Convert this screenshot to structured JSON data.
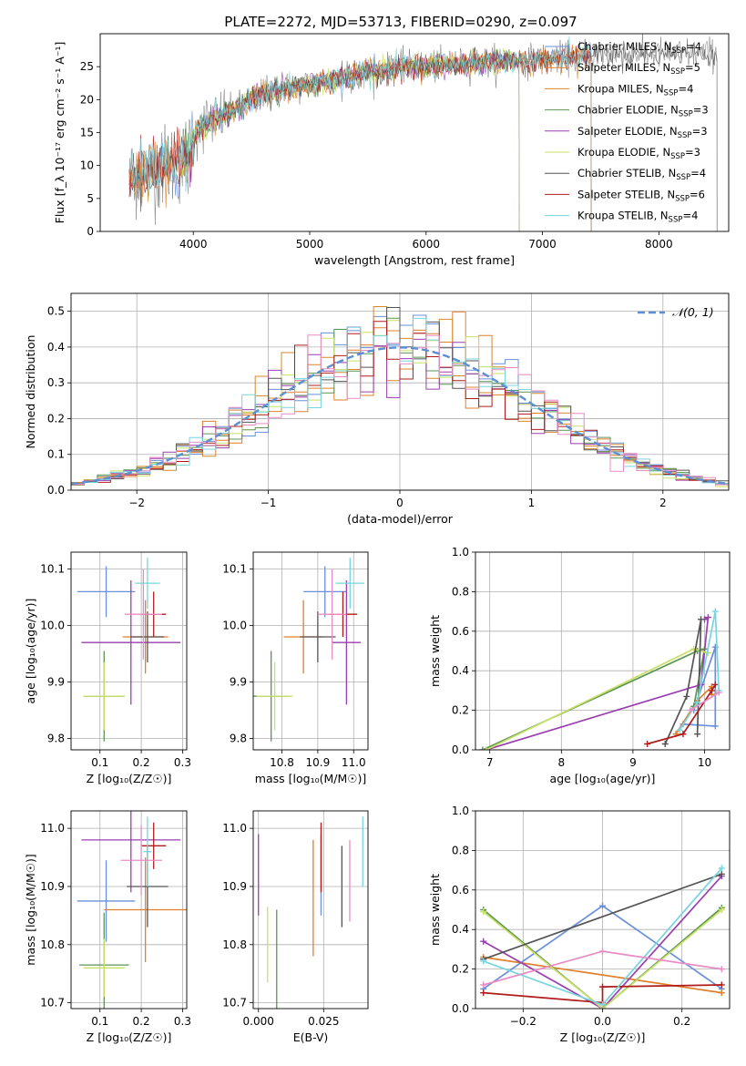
{
  "title": "PLATE=2272, MJD=53713, FIBERID=0290, z=0.097",
  "colors": [
    "#6a8fdb",
    "#e07f2c",
    "#d4892c",
    "#5b9454",
    "#9b3fb0",
    "#c8e066",
    "#555555",
    "#b01c1c",
    "#76d5de",
    "#e88cc4"
  ],
  "chart_data": [
    {
      "id": "spectrum",
      "type": "line",
      "xlabel": "wavelength [Angstrom, rest frame]",
      "ylabel": "Flux [f_λ 10⁻¹⁷ erg cm⁻² s⁻¹ A⁻¹]",
      "xlim": [
        3200,
        8600
      ],
      "ylim": [
        0,
        30
      ],
      "xticks": [
        4000,
        5000,
        6000,
        7000,
        8000
      ],
      "yticks": [
        0,
        5,
        10,
        15,
        20,
        25
      ],
      "grid": false,
      "legend": "top-right",
      "legend_entries": [
        {
          "lib": "Chabrier MILES",
          "n": "4",
          "color": "#6a8fdb"
        },
        {
          "lib": "Salpeter MILES",
          "n": "5",
          "color": "#e07f2c"
        },
        {
          "lib": "Kroupa MILES",
          "n": "4",
          "color": "#d4892c"
        },
        {
          "lib": "Chabrier ELODIE",
          "n": "3",
          "color": "#5b9454"
        },
        {
          "lib": "Salpeter ELODIE",
          "n": "3",
          "color": "#9b3fb0"
        },
        {
          "lib": "Kroupa ELODIE",
          "n": "3",
          "color": "#c8e066"
        },
        {
          "lib": "Chabrier STELIB",
          "n": "4",
          "color": "#555555"
        },
        {
          "lib": "Salpeter STELIB",
          "n": "6",
          "color": "#b01c1c"
        },
        {
          "lib": "Kroupa STELIB",
          "n": "4",
          "color": "#76d5de"
        }
      ],
      "continuum": [
        [
          3450,
          8
        ],
        [
          3600,
          9
        ],
        [
          3800,
          10
        ],
        [
          3950,
          11
        ],
        [
          4050,
          16
        ],
        [
          4300,
          18
        ],
        [
          4600,
          21
        ],
        [
          4900,
          22
        ],
        [
          5200,
          23
        ],
        [
          5500,
          24
        ],
        [
          5800,
          25
        ],
        [
          6100,
          25
        ],
        [
          6400,
          25.5
        ],
        [
          6700,
          26
        ],
        [
          7000,
          26
        ],
        [
          7300,
          26.5
        ],
        [
          7500,
          27
        ],
        [
          8000,
          27
        ],
        [
          8500,
          27
        ]
      ],
      "model_ranges": [
        [
          3450,
          7420
        ],
        [
          3450,
          7420
        ],
        [
          3450,
          7420
        ],
        [
          3900,
          6800
        ],
        [
          3900,
          6800
        ],
        [
          3900,
          6800
        ],
        [
          3450,
          8500
        ],
        [
          3450,
          7420
        ],
        [
          3450,
          7420
        ]
      ]
    },
    {
      "id": "residuals",
      "type": "histogram",
      "xlabel": "(data-model)/error",
      "ylabel": "Normed distribution",
      "xlim": [
        -2.5,
        2.5
      ],
      "ylim": [
        0,
        0.55
      ],
      "xticks": [
        -2,
        -1,
        0,
        1,
        2
      ],
      "yticks": [
        0.0,
        0.1,
        0.2,
        0.3,
        0.4,
        0.5
      ],
      "grid": true,
      "legend": "top-right",
      "normal_label": "𝒩(0, 1)"
    },
    {
      "id": "age-vs-z",
      "type": "errorbar",
      "xlabel": "Z [log₁₀(Z/Z☉)]",
      "ylabel": "age  [log₁₀(age/yr)]",
      "xlim": [
        0.03,
        0.31
      ],
      "ylim": [
        9.78,
        10.13
      ],
      "xticks": [
        0.1,
        0.2,
        0.3
      ],
      "yticks": [
        9.8,
        9.9,
        10.0,
        10.1
      ],
      "grid": true,
      "points": [
        {
          "x": 0.115,
          "y": 10.06,
          "xe": 0.07,
          "ye": 0.045,
          "color": "#6a8fdb"
        },
        {
          "x": 0.21,
          "y": 9.98,
          "xe": 0.055,
          "ye": 0.065,
          "color": "#e07f2c"
        },
        {
          "x": 0.11,
          "y": 9.875,
          "xe": 0.05,
          "ye": 0.08,
          "color": "#5b9454"
        },
        {
          "x": 0.175,
          "y": 9.97,
          "xe": 0.12,
          "ye": 0.11,
          "color": "#9b3fb0"
        },
        {
          "x": 0.11,
          "y": 9.875,
          "xe": 0.05,
          "ye": 0.06,
          "color": "#c8e066"
        },
        {
          "x": 0.215,
          "y": 9.98,
          "xe": 0.04,
          "ye": 0.045,
          "color": "#555555"
        },
        {
          "x": 0.23,
          "y": 10.02,
          "xe": 0.03,
          "ye": 0.04,
          "color": "#b01c1c"
        },
        {
          "x": 0.215,
          "y": 10.075,
          "xe": 0.03,
          "ye": 0.045,
          "color": "#76d5de"
        },
        {
          "x": 0.205,
          "y": 10.02,
          "xe": 0.045,
          "ye": 0.08,
          "color": "#e88cc4"
        }
      ]
    },
    {
      "id": "age-vs-mass",
      "type": "errorbar",
      "xlabel": "mass [log₁₀(M/M☉)]",
      "ylabel": "",
      "xlim": [
        10.72,
        11.04
      ],
      "ylim": [
        9.78,
        10.13
      ],
      "xticks": [
        10.8,
        10.9,
        11.0
      ],
      "yticks": [
        9.8,
        9.9,
        10.0,
        10.1
      ],
      "grid": true,
      "points": [
        {
          "x": 10.92,
          "y": 10.06,
          "xe": 0.06,
          "ye": 0.045,
          "color": "#6a8fdb"
        },
        {
          "x": 10.86,
          "y": 9.98,
          "xe": 0.055,
          "ye": 0.065,
          "color": "#e07f2c"
        },
        {
          "x": 10.77,
          "y": 9.875,
          "xe": 0.05,
          "ye": 0.08,
          "color": "#5b9454"
        },
        {
          "x": 10.98,
          "y": 9.97,
          "xe": 0.04,
          "ye": 0.11,
          "color": "#9b3fb0"
        },
        {
          "x": 10.78,
          "y": 9.875,
          "xe": 0.05,
          "ye": 0.06,
          "color": "#c8e066"
        },
        {
          "x": 10.9,
          "y": 9.98,
          "xe": 0.05,
          "ye": 0.045,
          "color": "#555555"
        },
        {
          "x": 10.97,
          "y": 10.02,
          "xe": 0.04,
          "ye": 0.04,
          "color": "#b01c1c"
        },
        {
          "x": 10.99,
          "y": 10.075,
          "xe": 0.04,
          "ye": 0.045,
          "color": "#76d5de"
        },
        {
          "x": 10.94,
          "y": 10.02,
          "xe": 0.04,
          "ye": 0.08,
          "color": "#e88cc4"
        }
      ]
    },
    {
      "id": "weight-vs-age",
      "type": "line",
      "xlabel": "age  [log₁₀(age/yr)]",
      "ylabel": "mass weight",
      "xlim": [
        6.8,
        10.35
      ],
      "ylim": [
        0,
        1
      ],
      "xticks": [
        7,
        8,
        9,
        10
      ],
      "yticks": [
        0.0,
        0.2,
        0.4,
        0.6,
        0.8,
        1.0
      ],
      "grid": true,
      "series": [
        {
          "color": "#6a8fdb",
          "x": [
            9.85,
            10.15,
            10.15,
            9.7
          ],
          "y": [
            0.2,
            0.52,
            0.12,
            0.13
          ]
        },
        {
          "color": "#e07f2c",
          "x": [
            9.6,
            9.9,
            10.1,
            10.1
          ],
          "y": [
            0.08,
            0.25,
            0.32,
            0.28
          ]
        },
        {
          "color": "#5b9454",
          "x": [
            6.9,
            9.9,
            10.0,
            9.85
          ],
          "y": [
            0.0,
            0.5,
            0.51,
            0.22
          ]
        },
        {
          "color": "#9b3fb0",
          "x": [
            6.95,
            9.95,
            10.05,
            10.0
          ],
          "y": [
            0.0,
            0.33,
            0.67,
            0.66
          ]
        },
        {
          "color": "#c8e066",
          "x": [
            6.95,
            9.85,
            10.05
          ],
          "y": [
            0.0,
            0.51,
            0.49
          ]
        },
        {
          "color": "#555555",
          "x": [
            9.45,
            9.75,
            9.95,
            9.9
          ],
          "y": [
            0.03,
            0.27,
            0.66,
            0.08
          ]
        },
        {
          "color": "#b01c1c",
          "x": [
            9.2,
            9.7,
            10.1,
            10.15
          ],
          "y": [
            0.03,
            0.08,
            0.3,
            0.33
          ]
        },
        {
          "color": "#76d5de",
          "x": [
            9.65,
            9.9,
            10.15,
            10.2
          ],
          "y": [
            0.1,
            0.24,
            0.7,
            0.3
          ]
        },
        {
          "color": "#e88cc4",
          "x": [
            9.8,
            10.2
          ],
          "y": [
            0.2,
            0.29
          ]
        }
      ]
    },
    {
      "id": "mass-vs-z",
      "type": "errorbar",
      "xlabel": "Z [log₁₀(Z/Z☉)]",
      "ylabel": "mass [log₁₀(M/M☉)]",
      "xlim": [
        0.03,
        0.31
      ],
      "ylim": [
        10.69,
        11.03
      ],
      "xticks": [
        0.1,
        0.2,
        0.3
      ],
      "yticks": [
        10.7,
        10.8,
        10.9,
        11.0
      ],
      "grid": true,
      "points": [
        {
          "x": 0.115,
          "y": 10.875,
          "xe": 0.07,
          "ye": 0.07,
          "color": "#6a8fdb"
        },
        {
          "x": 0.21,
          "y": 10.86,
          "xe": 0.1,
          "ye": 0.09,
          "color": "#e07f2c"
        },
        {
          "x": 0.11,
          "y": 10.765,
          "xe": 0.06,
          "ye": 0.09,
          "color": "#5b9454"
        },
        {
          "x": 0.175,
          "y": 10.98,
          "xe": 0.12,
          "ye": 0.09,
          "color": "#9b3fb0"
        },
        {
          "x": 0.11,
          "y": 10.76,
          "xe": 0.05,
          "ye": 0.05,
          "color": "#c8e066"
        },
        {
          "x": 0.215,
          "y": 10.9,
          "xe": 0.05,
          "ye": 0.07,
          "color": "#555555"
        },
        {
          "x": 0.23,
          "y": 10.97,
          "xe": 0.03,
          "ye": 0.04,
          "color": "#b01c1c"
        },
        {
          "x": 0.215,
          "y": 10.96,
          "xe": 0.01,
          "ye": 0.06,
          "color": "#76d5de"
        },
        {
          "x": 0.2,
          "y": 10.945,
          "xe": 0.05,
          "ye": 0.06,
          "color": "#e88cc4"
        }
      ]
    },
    {
      "id": "mass-vs-ebv",
      "type": "errorbar",
      "xlabel": "E(B-V)",
      "ylabel": "",
      "xlim": [
        -0.002,
        0.042
      ],
      "ylim": [
        10.69,
        11.03
      ],
      "xticks": [
        0.0,
        0.025
      ],
      "yticks": [
        10.7,
        10.8,
        10.9,
        11.0
      ],
      "grid": true,
      "points": [
        {
          "x": 0.024,
          "y": 10.92,
          "xe": 0,
          "ye": 0.07,
          "color": "#6a8fdb"
        },
        {
          "x": 0.021,
          "y": 10.88,
          "xe": 0,
          "ye": 0.1,
          "color": "#e07f2c"
        },
        {
          "x": 0.007,
          "y": 10.77,
          "xe": 0,
          "ye": 0.09,
          "color": "#5b9454"
        },
        {
          "x": 0.0,
          "y": 10.92,
          "xe": 0,
          "ye": 0.07,
          "color": "#9b3fb0"
        },
        {
          "x": 0.0035,
          "y": 10.8,
          "xe": 0,
          "ye": 0.065,
          "color": "#c8e066"
        },
        {
          "x": 0.032,
          "y": 10.9,
          "xe": 0,
          "ye": 0.07,
          "color": "#555555"
        },
        {
          "x": 0.024,
          "y": 10.95,
          "xe": 0,
          "ye": 0.06,
          "color": "#b01c1c"
        },
        {
          "x": 0.04,
          "y": 10.96,
          "xe": 0,
          "ye": 0.06,
          "color": "#76d5de"
        },
        {
          "x": 0.035,
          "y": 10.91,
          "xe": 0,
          "ye": 0.07,
          "color": "#e88cc4"
        }
      ]
    },
    {
      "id": "weight-vs-z",
      "type": "line",
      "xlabel": "Z [log₁₀(Z/Z☉)]",
      "ylabel": "mass weight",
      "xlim": [
        -0.32,
        0.32
      ],
      "ylim": [
        0,
        1
      ],
      "xticks": [
        -0.2,
        0.0,
        0.2
      ],
      "yticks": [
        0.0,
        0.2,
        0.4,
        0.6,
        0.8,
        1.0
      ],
      "grid": true,
      "series": [
        {
          "color": "#6a8fdb",
          "x": [
            -0.3,
            0.0,
            0.3
          ],
          "y": [
            0.1,
            0.52,
            0.1
          ]
        },
        {
          "color": "#e07f2c",
          "x": [
            -0.3,
            0.3
          ],
          "y": [
            0.26,
            0.08
          ]
        },
        {
          "color": "#5b9454",
          "x": [
            -0.3,
            0.0,
            0.3
          ],
          "y": [
            0.5,
            0.0,
            0.51
          ]
        },
        {
          "color": "#9b3fb0",
          "x": [
            -0.3,
            0.0,
            0.3
          ],
          "y": [
            0.34,
            0.0,
            0.67
          ]
        },
        {
          "color": "#c8e066",
          "x": [
            -0.3,
            0.0,
            0.3
          ],
          "y": [
            0.49,
            0.0,
            0.5
          ]
        },
        {
          "color": "#555555",
          "x": [
            -0.3,
            0.3
          ],
          "y": [
            0.25,
            0.68
          ]
        },
        {
          "color": "#b01c1c",
          "x": [
            -0.3,
            0.0,
            0.0,
            0.3
          ],
          "y": [
            0.08,
            0.03,
            0.11,
            0.12
          ]
        },
        {
          "color": "#76d5de",
          "x": [
            -0.3,
            0.0,
            0.3
          ],
          "y": [
            0.24,
            0.02,
            0.71
          ]
        },
        {
          "color": "#e88cc4",
          "x": [
            -0.3,
            0.0,
            0.3
          ],
          "y": [
            0.12,
            0.29,
            0.2
          ]
        }
      ]
    }
  ]
}
